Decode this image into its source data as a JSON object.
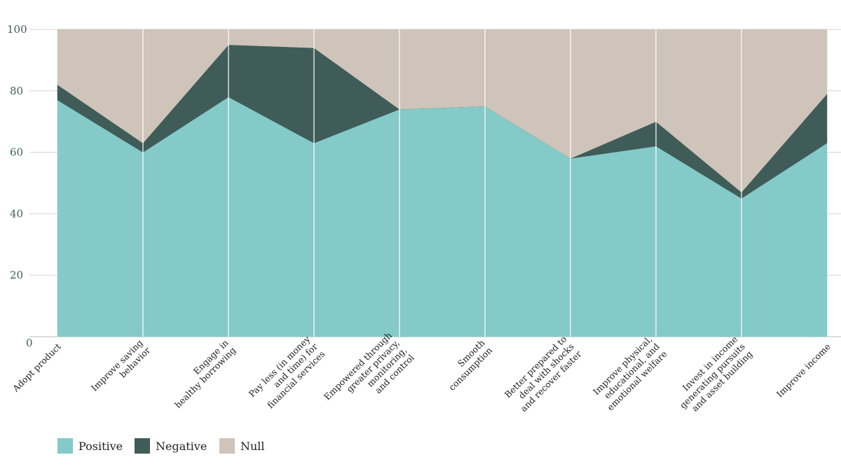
{
  "chart_data": {
    "type": "area",
    "stacked": true,
    "categories": [
      [
        "Adopt product"
      ],
      [
        "Improve saving",
        "behavior"
      ],
      [
        "Engage in",
        "healthy borrowing"
      ],
      [
        "Pay less (in money",
        "and time) for",
        "financial services"
      ],
      [
        "Empowered through",
        "greater privacy,",
        "monitoring,",
        "and control"
      ],
      [
        "Smooth",
        "consumption"
      ],
      [
        "Better prepared to",
        "deal with shocks",
        "and recover faster"
      ],
      [
        "Improve physical,",
        "educational, and",
        "emotional welfare"
      ],
      [
        "Invest in income",
        "generating pursuits",
        "and asset building"
      ],
      [
        "Improve income"
      ]
    ],
    "series": [
      {
        "name": "Positive",
        "color": "#84cac8",
        "values": [
          77,
          60,
          78,
          63,
          74,
          75,
          58,
          62,
          45,
          63
        ]
      },
      {
        "name": "Negative",
        "color": "#3f5c58",
        "values": [
          5,
          3,
          17,
          31,
          0,
          0,
          0,
          8,
          2,
          16
        ]
      },
      {
        "name": "Null",
        "color": "#cec4ba",
        "values": [
          18,
          37,
          5,
          6,
          26,
          25,
          42,
          30,
          53,
          21
        ]
      }
    ],
    "ylim": [
      0,
      100
    ],
    "yticks": [
      0,
      20,
      40,
      60,
      80,
      100
    ],
    "grid": true,
    "legend_position": "bottom-left"
  }
}
